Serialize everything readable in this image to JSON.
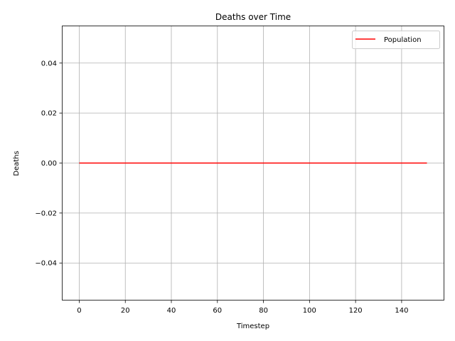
{
  "chart_data": {
    "type": "line",
    "title": "Deaths over Time",
    "xlabel": "Timestep",
    "ylabel": "Deaths",
    "xlim": [
      -7.55,
      158.55
    ],
    "ylim": [
      -0.055,
      0.055
    ],
    "x_ticks": [
      0,
      20,
      40,
      60,
      80,
      100,
      120,
      140
    ],
    "x_tick_labels": [
      "0",
      "20",
      "40",
      "60",
      "80",
      "100",
      "120",
      "140"
    ],
    "y_ticks": [
      -0.04,
      -0.02,
      0.0,
      0.02,
      0.04
    ],
    "y_tick_labels": [
      "−0.04",
      "−0.02",
      "0.00",
      "0.02",
      "0.04"
    ],
    "grid": true,
    "legend_position": "top-right",
    "series": [
      {
        "name": "Population",
        "color": "#ff0000",
        "x": [
          0,
          151
        ],
        "y": [
          0,
          0
        ]
      }
    ]
  }
}
